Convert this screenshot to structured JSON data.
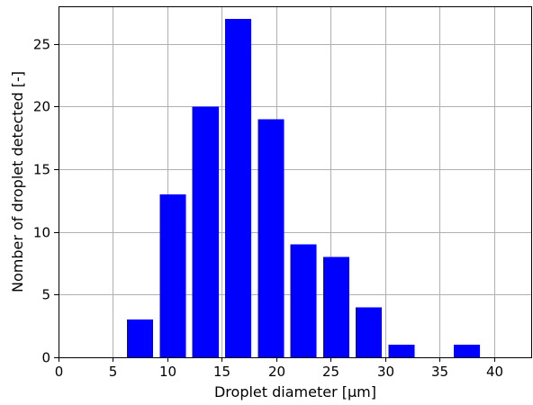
{
  "chart_data": {
    "type": "bar",
    "title": "",
    "xlabel": "Droplet diameter [µm]",
    "ylabel": "Nomber of droplet detected [-]",
    "xlim": [
      0,
      43.5
    ],
    "ylim": [
      0,
      28
    ],
    "xticks": [
      0,
      5,
      10,
      15,
      20,
      25,
      30,
      35,
      40
    ],
    "yticks": [
      0,
      5,
      10,
      15,
      20,
      25
    ],
    "bar_width": 2.4,
    "grid": true,
    "bar_color": "#0000ff",
    "x": [
      7.5,
      10.5,
      13.5,
      16.5,
      19.5,
      22.5,
      25.5,
      28.5,
      31.5,
      34.5,
      37.5,
      40.5
    ],
    "values": [
      3,
      13,
      20,
      27,
      19,
      9,
      8,
      4,
      1,
      0,
      1,
      0
    ]
  }
}
